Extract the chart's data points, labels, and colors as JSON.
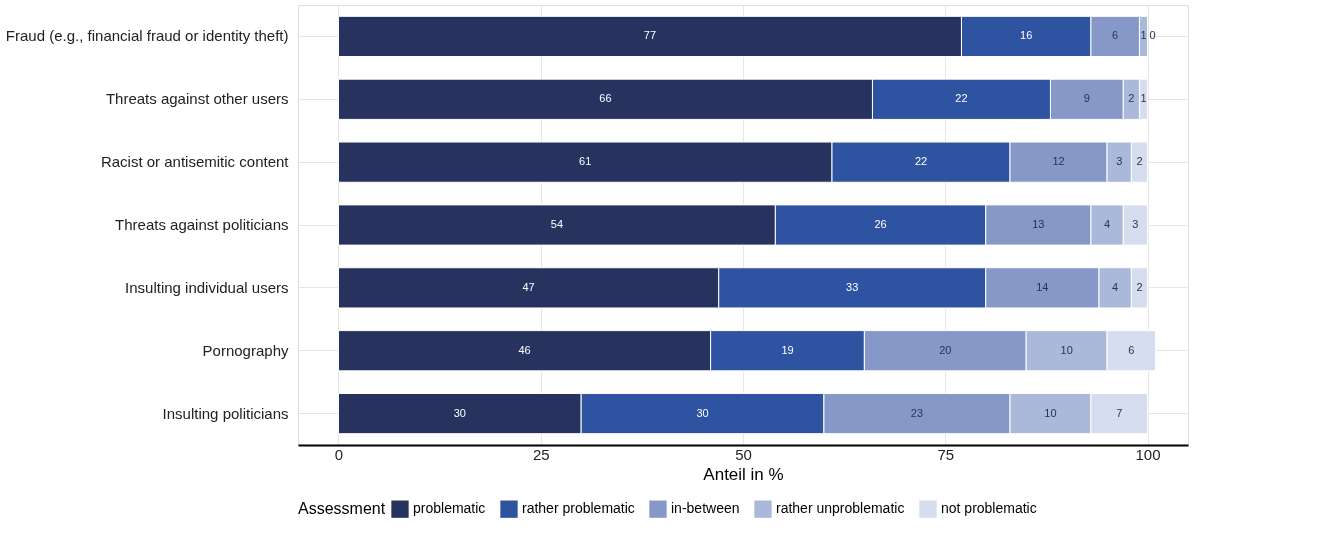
{
  "chart_data": {
    "type": "bar",
    "orientation": "horizontal",
    "stacked": true,
    "xlabel": "Anteil in %",
    "legend_title": "Assessment",
    "legend": "bottom",
    "grid": true,
    "data_labels": true,
    "categories": [
      "Fraud (e.g., financial fraud or identity theft)",
      "Threats against other users",
      "Racist or antisemitic content",
      "Threats against politicians",
      "Insulting individual users",
      "Pornography",
      "Insulting politicians"
    ],
    "xlim": [
      -5,
      105
    ],
    "xticks": [
      0,
      25,
      50,
      75,
      100
    ],
    "series": [
      {
        "name": "problematic",
        "color": "#27335e",
        "values": [
          77,
          66,
          61,
          54,
          47,
          46,
          30
        ]
      },
      {
        "name": "rather problematic",
        "color": "#2e53a0",
        "values": [
          16,
          22,
          22,
          26,
          33,
          19,
          30
        ]
      },
      {
        "name": "in-between",
        "color": "#8598c8",
        "values": [
          6,
          9,
          12,
          13,
          14,
          20,
          23
        ]
      },
      {
        "name": "rather unproblematic",
        "color": "#aab8d9",
        "values": [
          1,
          2,
          3,
          4,
          4,
          10,
          10
        ]
      },
      {
        "name": "not problematic",
        "color": "#d5ddee",
        "values": [
          0,
          1,
          2,
          3,
          2,
          6,
          7
        ]
      }
    ]
  }
}
